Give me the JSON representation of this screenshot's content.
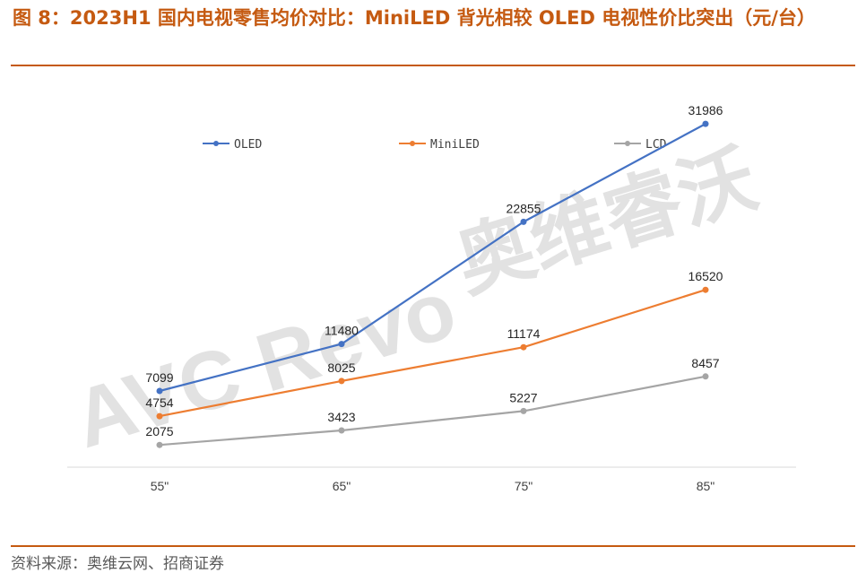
{
  "header": {
    "title": "图 8：2023H1 国内电视零售均价对比：MiniLED 背光相较 OLED 电视性价比突出（元/台）"
  },
  "footer": {
    "source": "资料来源：奥维云网、招商证券"
  },
  "watermark": {
    "latin": "AVC Revo",
    "cjk": "奥维睿沃"
  },
  "colors": {
    "accent": "#C55A11",
    "oled": "#4472C4",
    "miniled": "#ED7D31",
    "lcd": "#A5A5A5"
  },
  "chart_data": {
    "type": "line",
    "categories": [
      "55\"",
      "65\"",
      "75\"",
      "85\""
    ],
    "series": [
      {
        "name": "OLED",
        "values": [
          7099,
          11480,
          22855,
          31986
        ]
      },
      {
        "name": "MiniLED",
        "values": [
          4754,
          8025,
          11174,
          16520
        ]
      },
      {
        "name": "LCD",
        "values": [
          2075,
          3423,
          5227,
          8457
        ]
      }
    ],
    "ylim": [
      0,
      35000
    ],
    "grid": false,
    "legend_position": "top",
    "data_labels": true
  }
}
